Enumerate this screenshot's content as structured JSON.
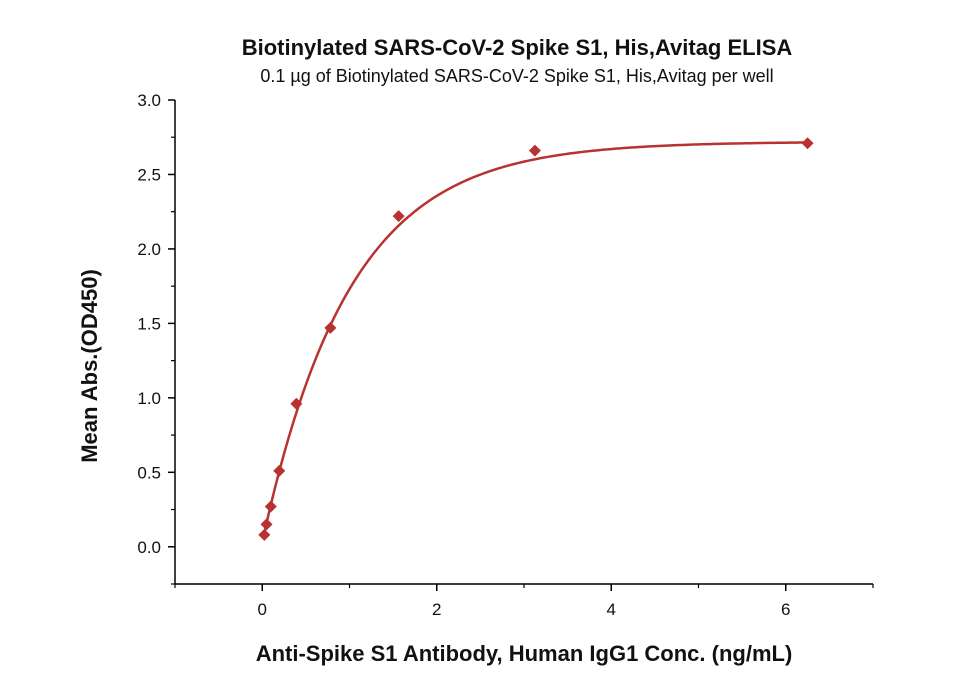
{
  "chart_data": {
    "type": "scatter",
    "title": "Biotinylated SARS-CoV-2 Spike S1, His,Avitag ELISA",
    "subtitle": "0.1 µg of Biotinylated SARS-CoV-2 Spike S1, His,Avitag per well",
    "xlabel": "Anti-Spike S1 Antibody, Human IgG1 Conc. (ng/mL)",
    "ylabel": "Mean Abs.(OD450)",
    "xlim": [
      -1,
      7
    ],
    "ylim": [
      -0.25,
      3.0
    ],
    "x_ticks": [
      0,
      2,
      4,
      6
    ],
    "x_tick_labels": [
      "0",
      "2",
      "4",
      "6"
    ],
    "y_ticks": [
      0.0,
      0.5,
      1.0,
      1.5,
      2.0,
      2.5,
      3.0
    ],
    "y_tick_labels": [
      "0.0",
      "0.5",
      "1.0",
      "1.5",
      "2.0",
      "2.5",
      "3.0"
    ],
    "grid": false,
    "series": [
      {
        "marker": "diamond",
        "color": "#b83232",
        "x": [
          0.024,
          0.049,
          0.098,
          0.195,
          0.391,
          0.781,
          1.563,
          3.125,
          6.25
        ],
        "y": [
          0.08,
          0.15,
          0.27,
          0.51,
          0.96,
          1.47,
          2.22,
          2.66,
          2.71
        ]
      }
    ],
    "fit_curve": {
      "color": "#b83232",
      "model": "exponential rise to plateau",
      "plateau": 2.72,
      "baseline": 0.03,
      "rate": 1.0
    }
  }
}
